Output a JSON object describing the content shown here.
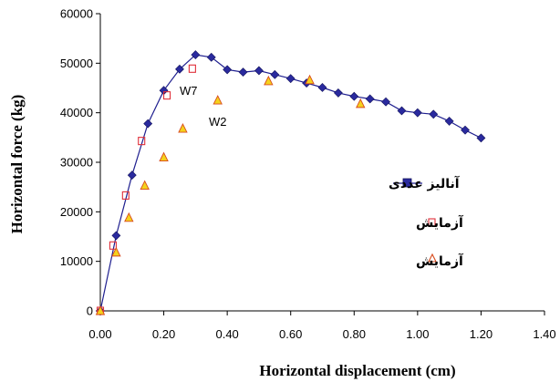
{
  "chart_data": {
    "type": "scatter",
    "xlabel": "Horizontal displacement (cm)",
    "ylabel": "Horizontal force (kg)",
    "xlim": [
      0,
      1.4
    ],
    "ylim": [
      0,
      60000
    ],
    "x_ticks": [
      "0.00",
      "0.20",
      "0.40",
      "0.60",
      "0.80",
      "1.00",
      "1.20",
      "1.40"
    ],
    "y_ticks": [
      "0",
      "10000",
      "20000",
      "30000",
      "40000",
      "50000",
      "60000"
    ],
    "grid": false,
    "legend_position": "right",
    "annotations": [
      {
        "text": "W7",
        "x": 0.285,
        "y": 46000
      },
      {
        "text": "W2",
        "x": 0.375,
        "y": 40500
      }
    ],
    "series": [
      {
        "name": "آنالیز عددی",
        "style": "line-diamond",
        "color": "#1f1f8f",
        "x": [
          0,
          0.05,
          0.1,
          0.15,
          0.2,
          0.25,
          0.3,
          0.35,
          0.4,
          0.45,
          0.5,
          0.55,
          0.6,
          0.65,
          0.7,
          0.75,
          0.8,
          0.85,
          0.9,
          0.95,
          1.0,
          1.05,
          1.1,
          1.15,
          1.2
        ],
        "y": [
          0,
          15200,
          27400,
          37800,
          44500,
          48800,
          51700,
          51200,
          48700,
          48200,
          48500,
          47700,
          46900,
          46000,
          45100,
          44000,
          43300,
          42800,
          42200,
          40400,
          40000,
          39700,
          38300,
          36500,
          34900
        ]
      },
      {
        "name": "آزمایش",
        "style": "open-square",
        "color": "#e0303a",
        "x": [
          0,
          0.04,
          0.08,
          0.13,
          0.21,
          0.29
        ],
        "y": [
          0,
          13200,
          23300,
          34300,
          43500,
          48900
        ]
      },
      {
        "name": "آزمایش",
        "style": "triangle",
        "color": "#d84a1c",
        "fill": "#f4d21c",
        "x": [
          0,
          0.05,
          0.09,
          0.14,
          0.2,
          0.26,
          0.37,
          0.53,
          0.66,
          0.82
        ],
        "y": [
          0,
          11800,
          18800,
          25300,
          31000,
          36800,
          42500,
          46400,
          46600,
          41800
        ]
      }
    ]
  }
}
